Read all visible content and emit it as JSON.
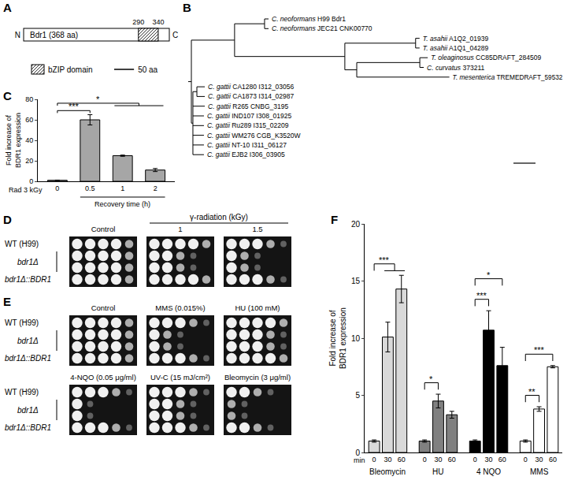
{
  "panels": {
    "A": {
      "label": "A",
      "protein": "Bdr1 (368 aa)",
      "length": 368,
      "n_terminus": "N",
      "c_terminus": "C",
      "domain": {
        "name": "bZIP domain",
        "start": 290,
        "end": 340
      },
      "scale_bar": {
        "length": 50,
        "label": "50 aa"
      }
    },
    "B": {
      "label": "B",
      "scale_bar": {
        "length": 1
      },
      "tree": {
        "children": [
          {
            "length": 1.96,
            "children": [
              {
                "length": 1.36,
                "children": [
                  {
                    "name": "C. neoformans H99 Bdr1",
                    "length": 0.18
                  },
                  {
                    "name": "C. neoformans JEC21 CNK00770",
                    "length": 0.18
                  }
                ]
              },
              {
                "length": 5.0,
                "children": [
                  {
                    "length": 3.21,
                    "children": [
                      {
                        "name": "T. asahii A1Q2_01939",
                        "length": 0.18
                      },
                      {
                        "name": "T. asahii A1Q1_04289",
                        "length": 0.18
                      }
                    ]
                  },
                  {
                    "length": 0.54,
                    "children": [
                      {
                        "length": 2.86,
                        "children": [
                          {
                            "name": "T. oleaginosus CC85DRAFT_284509",
                            "length": 0.36
                          },
                          {
                            "name": "C. curvatus 373211",
                            "length": 0.18
                          }
                        ]
                      },
                      {
                        "name": "T. mesenterica TREMEDRAFT_59532",
                        "length": 4.2
                      }
                    ]
                  }
                ]
              }
            ]
          },
          {
            "length": 0.07,
            "children": [
              {
                "length": 0.18,
                "children": [
                  {
                    "name": "C. gattii CA1280 I312_03056",
                    "length": 0.36
                  },
                  {
                    "name": "C. gattii CA1873 I314_02987",
                    "length": 0.36
                  }
                ]
              },
              {
                "name": "C. gattii R265 CNBG_3195",
                "length": 0.54
              },
              {
                "name": "C. gattii IND107 I308_01925",
                "length": 0.5
              },
              {
                "name": "C. gattii Ru289 I315_02209",
                "length": 0.5
              },
              {
                "name": "C. gattii WM276 CGB_K3520W",
                "length": 0.5
              },
              {
                "name": "C. gattii NT-10 I311_06127",
                "length": 0.5
              },
              {
                "name": "C. gattii EJB2 I306_03905",
                "length": 0.5
              }
            ]
          }
        ]
      }
    },
    "D": {
      "label": "D",
      "strains": [
        {
          "name": "WT (H99)",
          "rows": 1
        },
        {
          "name": "bdr1Δ",
          "rows": 2
        },
        {
          "name": "bdr1Δ::BDR1",
          "rows": 1
        }
      ],
      "group_title": "γ-radiation (kGy)",
      "conditions": [
        {
          "title": "Control",
          "in_group": false,
          "growth": [
            [
              3,
              3,
              3,
              3,
              2
            ],
            [
              3,
              3,
              3,
              3,
              2
            ],
            [
              3,
              3,
              3,
              3,
              2
            ],
            [
              3,
              3,
              3,
              3,
              2
            ]
          ]
        },
        {
          "title": "1",
          "in_group": true,
          "growth": [
            [
              3,
              3,
              3,
              3,
              2
            ],
            [
              3,
              3,
              2,
              1,
              0
            ],
            [
              3,
              3,
              2,
              1,
              0
            ],
            [
              3,
              3,
              3,
              3,
              2
            ]
          ]
        },
        {
          "title": "1.5",
          "in_group": true,
          "growth": [
            [
              3,
              3,
              3,
              2,
              1
            ],
            [
              3,
              2,
              1,
              0,
              0
            ],
            [
              3,
              2,
              1,
              0,
              0
            ],
            [
              3,
              3,
              3,
              2,
              1
            ]
          ]
        }
      ]
    },
    "E": {
      "label": "E",
      "strains": [
        {
          "name": "WT (H99)",
          "rows": 1
        },
        {
          "name": "bdr1Δ",
          "rows": 2
        },
        {
          "name": "bdr1Δ::BDR1",
          "rows": 1
        }
      ],
      "conditions": [
        {
          "title": "Control",
          "growth": [
            [
              3,
              3,
              3,
              3,
              2
            ],
            [
              3,
              3,
              3,
              3,
              2
            ],
            [
              3,
              3,
              3,
              3,
              2
            ],
            [
              3,
              3,
              3,
              3,
              2
            ]
          ]
        },
        {
          "title": "MMS (0.015%)",
          "growth": [
            [
              3,
              3,
              3,
              2,
              1
            ],
            [
              3,
              2,
              1,
              0,
              0
            ],
            [
              3,
              2,
              1,
              0,
              0
            ],
            [
              3,
              3,
              3,
              2,
              1
            ]
          ]
        },
        {
          "title": "HU (100 mM)",
          "growth": [
            [
              3,
              3,
              3,
              3,
              2
            ],
            [
              3,
              3,
              3,
              2,
              1
            ],
            [
              3,
              3,
              3,
              2,
              1
            ],
            [
              3,
              3,
              3,
              3,
              2
            ]
          ]
        },
        {
          "title": "4-NQO (0.05 μg/ml)",
          "growth": [
            [
              3,
              3,
              3,
              2,
              1
            ],
            [
              3,
              1,
              0,
              0,
              0
            ],
            [
              3,
              1,
              0,
              0,
              0
            ],
            [
              3,
              3,
              3,
              2,
              1
            ]
          ]
        },
        {
          "title": "UV-C (15 mJ/cm²)",
          "growth": [
            [
              3,
              3,
              3,
              2,
              1
            ],
            [
              3,
              3,
              2,
              1,
              0
            ],
            [
              3,
              3,
              2,
              1,
              0
            ],
            [
              3,
              3,
              3,
              2,
              1
            ]
          ]
        },
        {
          "title": "Bleomycin (3 μg/ml)",
          "growth": [
            [
              3,
              3,
              2,
              1,
              0
            ],
            [
              2,
              1,
              0,
              0,
              0
            ],
            [
              2,
              1,
              0,
              0,
              0
            ],
            [
              3,
              3,
              2,
              1,
              0
            ]
          ]
        }
      ]
    }
  },
  "chart_data": [
    {
      "panel": "C",
      "type": "bar",
      "y_label": "Fold increase of BDR1 expression",
      "row_label": "Rad 3 kGy",
      "x_label": "Recovery time (h)",
      "categories": [
        "0",
        "0.5",
        "1",
        "2"
      ],
      "values": [
        1,
        60,
        25,
        11
      ],
      "errors": [
        0.2,
        5,
        0.6,
        1.5
      ],
      "color": "#a6a6a6",
      "ylim": [
        0,
        80
      ],
      "yticks": [
        0,
        20,
        40,
        60,
        80
      ],
      "grid": false,
      "significance": [
        {
          "from": 0,
          "to": [
            1
          ],
          "label": "***"
        },
        {
          "from": 0,
          "to": [
            2,
            3
          ],
          "label": "*"
        }
      ]
    },
    {
      "panel": "F",
      "type": "bar",
      "y_label": "Fold increase of BDR1 expression",
      "x_label": "min",
      "categories": [
        "0",
        "30",
        "60"
      ],
      "groups": [
        {
          "name": "Bleomycin",
          "color": "#d9d9d9",
          "values": [
            1,
            10.1,
            14.3
          ],
          "errors": [
            0.1,
            1.3,
            1.2
          ],
          "significance": [
            {
              "from": 0,
              "to": [
                1,
                2
              ],
              "label": "***"
            }
          ]
        },
        {
          "name": "HU",
          "color": "#808080",
          "values": [
            1,
            4.5,
            3.3
          ],
          "errors": [
            0.1,
            0.6,
            0.3
          ],
          "significance": [
            {
              "from": 0,
              "to": [
                1
              ],
              "label": "*"
            }
          ]
        },
        {
          "name": "4 NQO",
          "color": "#000000",
          "values": [
            1,
            10.7,
            7.6
          ],
          "errors": [
            0.1,
            1.7,
            1.6
          ],
          "significance": [
            {
              "from": 0,
              "to": [
                1
              ],
              "label": "***"
            },
            {
              "from": 0,
              "to": [
                2
              ],
              "label": "*"
            }
          ]
        },
        {
          "name": "MMS",
          "color": "#ffffff",
          "values": [
            1,
            3.8,
            7.5
          ],
          "errors": [
            0.1,
            0.2,
            0.1
          ],
          "significance": [
            {
              "from": 0,
              "to": [
                1
              ],
              "label": "**"
            },
            {
              "from": 0,
              "to": [
                2
              ],
              "label": "***"
            }
          ]
        }
      ],
      "ylim": [
        0,
        20
      ],
      "yticks": [
        0,
        5,
        10,
        15,
        20
      ],
      "grid": false
    }
  ]
}
